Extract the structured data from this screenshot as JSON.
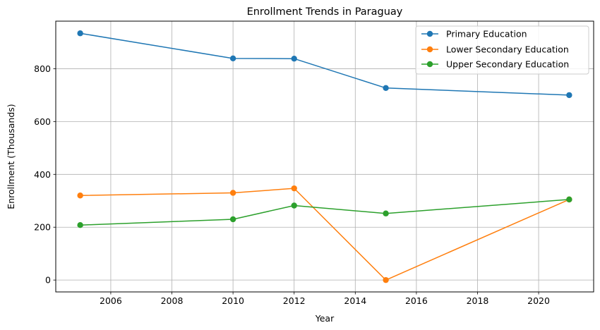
{
  "chart_data": {
    "type": "line",
    "title": "Enrollment Trends in Paraguay",
    "xlabel": "Year",
    "ylabel": "Enrollment (Thousands)",
    "x": [
      2005,
      2010,
      2012,
      2015,
      2021
    ],
    "xlim": [
      2004.2,
      2021.8
    ],
    "ylim": [
      -45,
      980
    ],
    "xticks": [
      2006,
      2008,
      2010,
      2012,
      2014,
      2016,
      2018,
      2020
    ],
    "yticks": [
      0,
      200,
      400,
      600,
      800
    ],
    "grid": true,
    "legend_position": "top-right",
    "series": [
      {
        "name": "Primary Education",
        "color": "#1f77b4",
        "values": [
          934,
          839,
          838,
          727,
          700
        ]
      },
      {
        "name": "Lower Secondary Education",
        "color": "#ff7f0e",
        "values": [
          320,
          330,
          347,
          0,
          305
        ]
      },
      {
        "name": "Upper Secondary Education",
        "color": "#2ca02c",
        "values": [
          208,
          230,
          282,
          252,
          305
        ]
      }
    ]
  }
}
